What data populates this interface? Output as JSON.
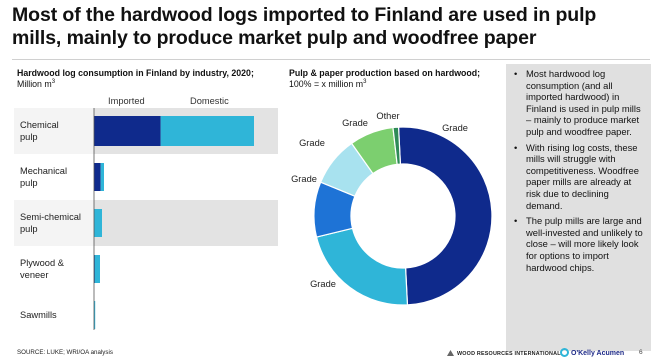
{
  "slide": {
    "title": "Most of the hardwood logs imported to Finland are used in pulp mills, mainly to produce market pulp and woodfree paper",
    "source": "SOURCE: LUKE; WRI/OA analysis",
    "page_number": "6",
    "logo_1": "WOOD RESOURCES INTERNATIONAL",
    "logo_2": "O'Kelly Acumen"
  },
  "bar_panel": {
    "title_bold": "Hardwood log consumption in Finland by industry, 2020;",
    "title_unit": " Million m",
    "title_sup": "3"
  },
  "donut_panel": {
    "title_bold": "Pulp & paper production based on hardwood;",
    "title_unit": " 100% = x million m",
    "title_sup": "3"
  },
  "sidebar": {
    "bullets": [
      "Most hardwood log consumption (and all imported hardwood) in Finland is used in pulp mills – mainly to produce market pulp and woodfree paper.",
      "With rising log costs, these mills will struggle with competitiveness. Woodfree paper mills are already at risk due to declining demand.",
      "The pulp mills are large and well-invested and unlikely to close – will more likely look for options to import hardwood chips."
    ]
  },
  "chart_data": [
    {
      "type": "bar",
      "orientation": "horizontal",
      "stacked": true,
      "categories": [
        "Chemical pulp",
        "Mechanical pulp",
        "Semi-chemical pulp",
        "Plywood & veneer",
        "Sawmills"
      ],
      "series": [
        {
          "name": "Imported",
          "values": [
            1.0,
            0.1,
            0.0,
            0.01,
            0.0
          ],
          "color": "#0f2a8c"
        },
        {
          "name": "Domestic",
          "values": [
            1.4,
            0.05,
            0.12,
            0.08,
            0.01
          ],
          "color": "#2fb5d8"
        }
      ],
      "xlim": [
        0,
        2.7
      ],
      "legend": "top",
      "highlight_rows": [
        "Chemical pulp",
        "Semi-chemical pulp"
      ]
    },
    {
      "type": "pie",
      "donut": true,
      "labels": [
        "Grade",
        "Grade",
        "Grade",
        "Grade",
        "Grade",
        "Other"
      ],
      "values": [
        50,
        22,
        10,
        9,
        8,
        1
      ],
      "colors": [
        "#0f2a8c",
        "#2fb5d8",
        "#1e73d6",
        "#a8e2ef",
        "#7ccf6f",
        "#2e8b57"
      ]
    }
  ]
}
